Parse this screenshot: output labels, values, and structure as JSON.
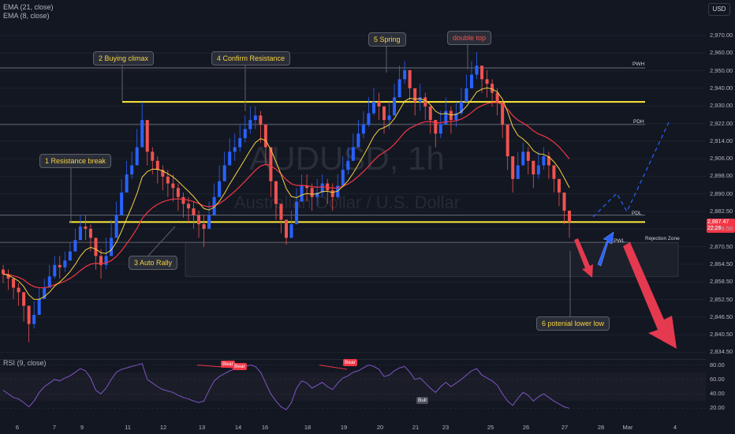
{
  "legend": {
    "ema21": "EMA (21, close)",
    "ema8": "EMA (8, close)",
    "rsi": "RSI (9, close)"
  },
  "currency_badge": "USD",
  "watermark": {
    "symbol": "AUDUSD, 1h",
    "subtitle": "Australian Dollar / U.S. Dollar"
  },
  "annotations": {
    "a1": "1 Resistance break",
    "a2": "2 Buying  climax",
    "a3": "3 Auto Rally",
    "a4": "4 Confirm Resistance",
    "a5": "5 Spring",
    "a6": "double top",
    "a7": "6 potenial lower low"
  },
  "levels": {
    "pwh": "PWH",
    "pdh": "PDH",
    "pdl": "PDL",
    "pwl": "PWL",
    "rejection": "Rejection Zone"
  },
  "price_tag": {
    "price": "2,887.47",
    "time": "22:26"
  },
  "rsi_tags": {
    "bear1": "Bear",
    "bear2": "Bear",
    "bear3": "Bear",
    "bull": "Bull"
  },
  "colors": {
    "background": "#131722",
    "up_candle": "#2962ff",
    "down_candle": "#ef5350",
    "ema21": "#f23645",
    "ema8": "#f5d142",
    "resistance_line": "#ffeb3b",
    "rsi_line": "#7e57c2",
    "projection": "#2962ff",
    "bearish_arrow": "#e53950"
  },
  "chart_data": {
    "type": "candlestick",
    "y_axis_ticks": [
      "2,970.00",
      "2,960.00",
      "2,950.00",
      "2,940.00",
      "2,930.00",
      "2,922.00",
      "2,914.00",
      "2,906.00",
      "2,898.00",
      "2,890.00",
      "2,882.50",
      "2,876.50",
      "2,870.50",
      "2,864.50",
      "2,858.50",
      "2,852.50",
      "2,846.50",
      "2,840.50",
      "2,834.50"
    ],
    "x_axis_ticks": [
      "6",
      "7",
      "9",
      "11",
      "12",
      "13",
      "14",
      "16",
      "18",
      "19",
      "20",
      "21",
      "23",
      "25",
      "26",
      "27",
      "28",
      "Mar",
      "4"
    ],
    "rsi_axis_ticks": [
      "80.00",
      "60.00",
      "40.00",
      "20.00"
    ],
    "closes": [
      2864,
      2862,
      2858,
      2856,
      2850,
      2842,
      2846,
      2853,
      2858,
      2863,
      2868,
      2867,
      2870,
      2874,
      2879,
      2885,
      2884,
      2880,
      2872,
      2868,
      2872,
      2880,
      2890,
      2900,
      2908,
      2912,
      2920,
      2932,
      2918,
      2914,
      2910,
      2907,
      2904,
      2902,
      2898,
      2895,
      2893,
      2890,
      2886,
      2884,
      2890,
      2898,
      2905,
      2912,
      2918,
      2920,
      2924,
      2928,
      2932,
      2934,
      2930,
      2920,
      2905,
      2895,
      2888,
      2880,
      2886,
      2896,
      2903,
      2902,
      2898,
      2900,
      2904,
      2901,
      2898,
      2903,
      2910,
      2914,
      2920,
      2926,
      2930,
      2935,
      2940,
      2938,
      2932,
      2934,
      2942,
      2950,
      2954,
      2946,
      2940,
      2942,
      2938,
      2932,
      2926,
      2930,
      2936,
      2932,
      2935,
      2940,
      2946,
      2952,
      2956,
      2950,
      2948,
      2944,
      2940,
      2930,
      2916,
      2906,
      2912,
      2918,
      2914,
      2908,
      2912,
      2916,
      2912,
      2906,
      2900,
      2892,
      2887
    ],
    "highs": [
      2868,
      2866,
      2862,
      2860,
      2856,
      2850,
      2852,
      2858,
      2862,
      2868,
      2872,
      2872,
      2874,
      2878,
      2884,
      2890,
      2890,
      2886,
      2880,
      2875,
      2880,
      2888,
      2896,
      2906,
      2914,
      2918,
      2928,
      2940,
      2926,
      2920,
      2916,
      2912,
      2910,
      2908,
      2904,
      2900,
      2898,
      2896,
      2892,
      2890,
      2896,
      2904,
      2912,
      2918,
      2924,
      2926,
      2930,
      2934,
      2938,
      2938,
      2936,
      2926,
      2912,
      2900,
      2894,
      2886,
      2892,
      2902,
      2908,
      2908,
      2904,
      2906,
      2908,
      2906,
      2904,
      2908,
      2916,
      2920,
      2926,
      2932,
      2936,
      2942,
      2946,
      2944,
      2938,
      2940,
      2948,
      2956,
      2958,
      2952,
      2946,
      2948,
      2944,
      2938,
      2932,
      2936,
      2942,
      2938,
      2940,
      2946,
      2952,
      2958,
      2962,
      2956,
      2954,
      2950,
      2946,
      2936,
      2922,
      2912,
      2918,
      2922,
      2920,
      2914,
      2918,
      2920,
      2918,
      2912,
      2906,
      2898,
      2892
    ],
    "lows": [
      2860,
      2857,
      2853,
      2850,
      2843,
      2834,
      2840,
      2848,
      2853,
      2858,
      2862,
      2862,
      2865,
      2870,
      2874,
      2880,
      2879,
      2874,
      2866,
      2862,
      2866,
      2874,
      2884,
      2894,
      2902,
      2906,
      2914,
      2924,
      2912,
      2908,
      2904,
      2901,
      2898,
      2896,
      2892,
      2889,
      2887,
      2884,
      2880,
      2876,
      2884,
      2892,
      2899,
      2906,
      2912,
      2914,
      2918,
      2922,
      2926,
      2928,
      2922,
      2912,
      2898,
      2888,
      2882,
      2877,
      2880,
      2890,
      2897,
      2896,
      2892,
      2894,
      2898,
      2895,
      2892,
      2897,
      2904,
      2908,
      2914,
      2920,
      2924,
      2929,
      2934,
      2932,
      2926,
      2928,
      2936,
      2944,
      2948,
      2940,
      2934,
      2936,
      2932,
      2926,
      2920,
      2924,
      2930,
      2926,
      2929,
      2934,
      2940,
      2946,
      2950,
      2944,
      2942,
      2938,
      2934,
      2924,
      2910,
      2900,
      2906,
      2912,
      2908,
      2902,
      2906,
      2910,
      2906,
      2900,
      2894,
      2886,
      2880
    ],
    "rsi": [
      45,
      40,
      35,
      33,
      28,
      22,
      30,
      42,
      50,
      55,
      60,
      58,
      62,
      65,
      70,
      75,
      72,
      62,
      45,
      40,
      48,
      60,
      70,
      74,
      76,
      78,
      80,
      82,
      60,
      55,
      50,
      46,
      44,
      42,
      38,
      35,
      33,
      30,
      28,
      30,
      45,
      58,
      64,
      68,
      72,
      74,
      76,
      78,
      80,
      78,
      70,
      55,
      40,
      30,
      22,
      18,
      28,
      48,
      58,
      55,
      48,
      52,
      56,
      50,
      46,
      55,
      62,
      65,
      70,
      72,
      76,
      80,
      78,
      74,
      64,
      66,
      72,
      76,
      78,
      70,
      60,
      62,
      55,
      48,
      42,
      50,
      56,
      50,
      55,
      60,
      66,
      72,
      75,
      66,
      62,
      58,
      52,
      40,
      30,
      24,
      34,
      42,
      38,
      30,
      36,
      40,
      35,
      30,
      26,
      22,
      20
    ],
    "ema21_label": "EMA (21, close)",
    "ema8_label": "EMA (8, close)",
    "ylim": [
      2830,
      2978
    ],
    "key_levels": {
      "PWH": 2955,
      "resistance": 2940,
      "PDH": 2930,
      "PDL": 2890,
      "support": 2887,
      "PWL": 2878,
      "rejection_zone": [
        2863,
        2878
      ]
    }
  }
}
